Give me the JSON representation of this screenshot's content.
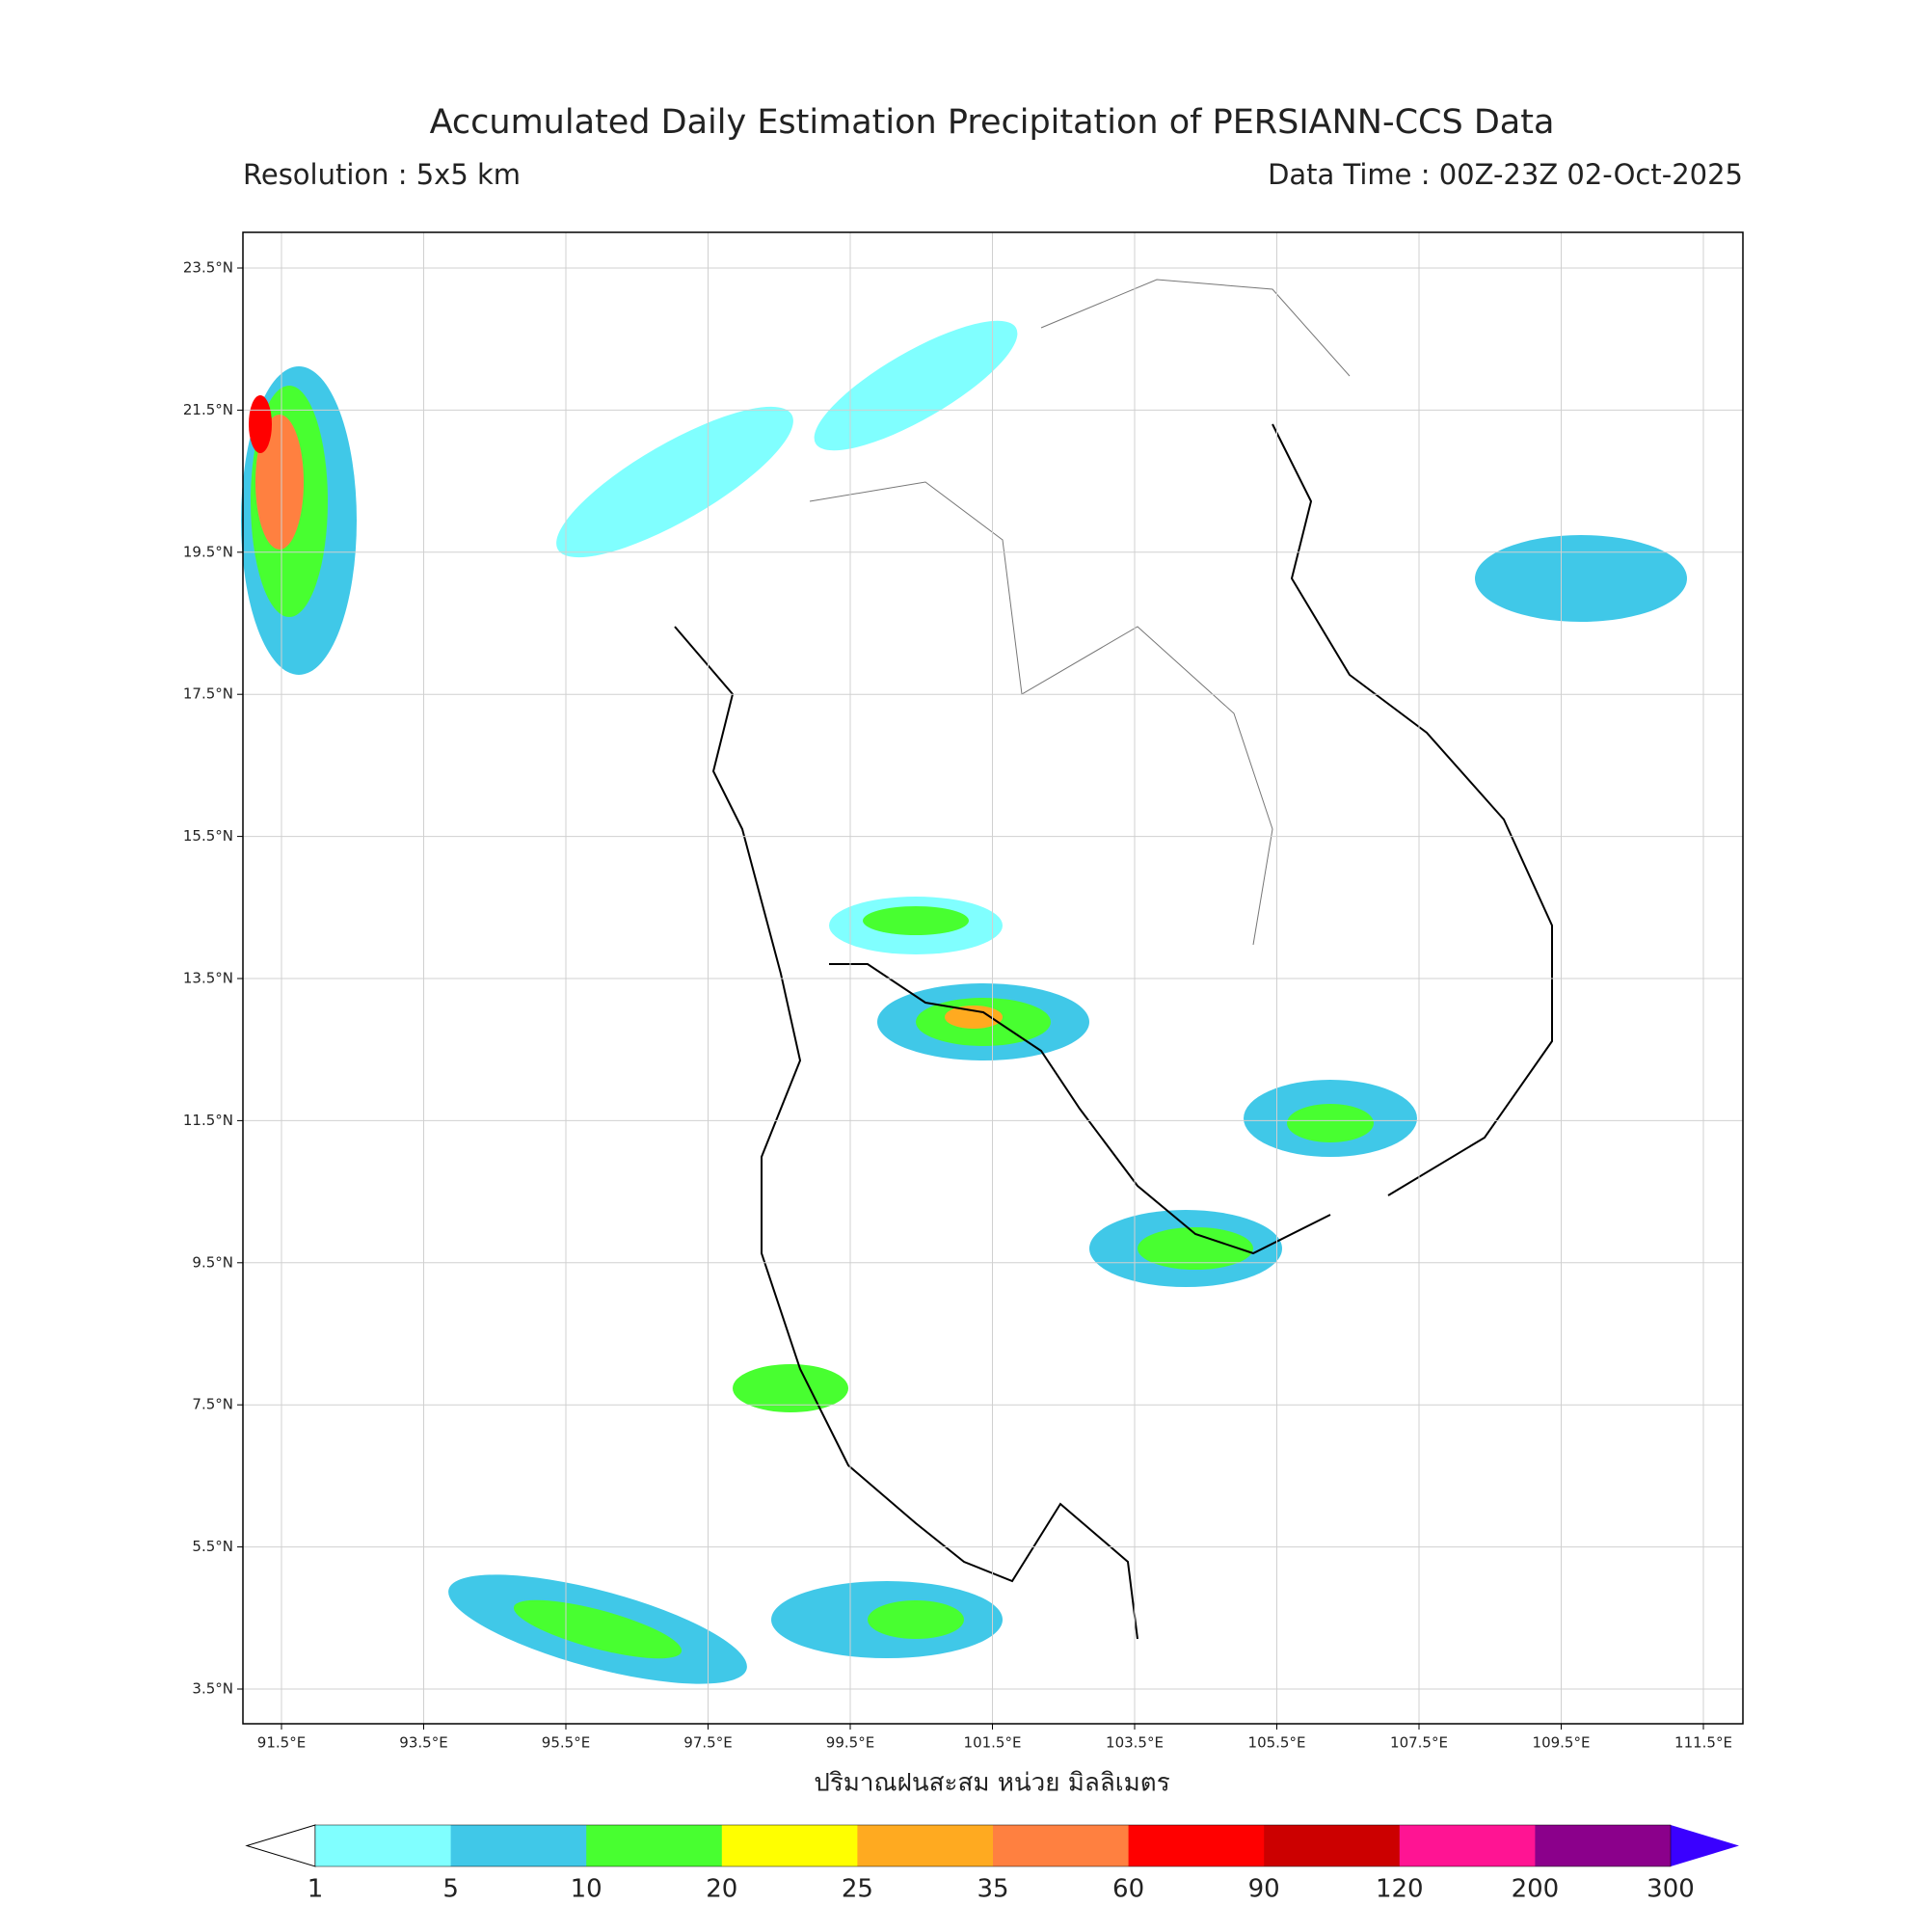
{
  "title": "Accumulated Daily Estimation Precipitation of PERSIANN-CCS Data",
  "resolution": "Resolution : 5x5 km",
  "data_time": "Data Time : 00Z-23Z 02-Oct-2025",
  "map": {
    "lat_ticks": [
      "23.5°N",
      "21.5°N",
      "19.5°N",
      "17.5°N",
      "15.5°N",
      "13.5°N",
      "11.5°N",
      "9.5°N",
      "7.5°N",
      "5.5°N",
      "3.5°N"
    ],
    "lon_ticks": [
      "91.5°E",
      "93.5°E",
      "95.5°E",
      "97.5°E",
      "99.5°E",
      "101.5°E",
      "103.5°E",
      "105.5°E",
      "107.5°E",
      "109.5°E",
      "111.5°E"
    ],
    "grid": true
  },
  "x_label": "ปริมาณฝนสะสม หน่วย มิลลิเมตร",
  "colorbar": {
    "levels": [
      1,
      5,
      10,
      20,
      25,
      35,
      60,
      90,
      120,
      200,
      300
    ],
    "colors": [
      "#80ffff",
      "#40c8e8",
      "#48ff30",
      "#ffff00",
      "#ffaa20",
      "#ff8040",
      "#ff0000",
      "#cc0000",
      "#ff1493",
      "#8b008b"
    ],
    "under_color": "#ffffff",
    "over_color": "#3a00ff"
  }
}
